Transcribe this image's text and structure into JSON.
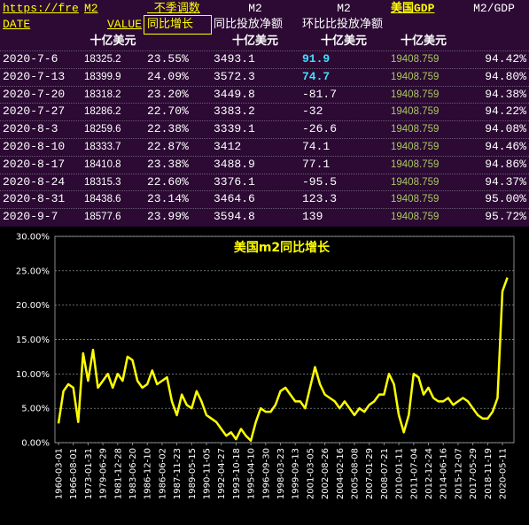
{
  "table": {
    "columns": [
      {
        "line1": "https://fre",
        "line2": "DATE"
      },
      {
        "line1": "M2",
        "line2": "VALUE",
        "unit": "十亿美元"
      },
      {
        "line1": "_不季调数",
        "line2": "同比增长"
      },
      {
        "line1": "M2",
        "line2": "同比投放净额",
        "unit": "十亿美元"
      },
      {
        "line1": "M2",
        "line2": "环比比投放净额",
        "unit": "十亿美元"
      },
      {
        "line1": "美国GDP",
        "unit": "十亿美元"
      },
      {
        "line1": "M2/GDP"
      }
    ],
    "rows": [
      [
        "2020-7-6",
        "18325.2",
        "23.55%",
        "3493.1",
        "91.9",
        "19408.759",
        "94.42%"
      ],
      [
        "2020-7-13",
        "18399.9",
        "24.09%",
        "3572.3",
        "74.7",
        "19408.759",
        "94.80%"
      ],
      [
        "2020-7-20",
        "18318.2",
        "23.20%",
        "3449.8",
        "-81.7",
        "19408.759",
        "94.38%"
      ],
      [
        "2020-7-27",
        "18286.2",
        "22.70%",
        "3383.2",
        "-32",
        "19408.759",
        "94.22%"
      ],
      [
        "2020-8-3",
        "18259.6",
        "22.38%",
        "3339.1",
        "-26.6",
        "19408.759",
        "94.08%"
      ],
      [
        "2020-8-10",
        "18333.7",
        "22.87%",
        "3412",
        "74.1",
        "19408.759",
        "94.46%"
      ],
      [
        "2020-8-17",
        "18410.8",
        "23.38%",
        "3488.9",
        "77.1",
        "19408.759",
        "94.86%"
      ],
      [
        "2020-8-24",
        "18315.3",
        "22.60%",
        "3376.1",
        "-95.5",
        "19408.759",
        "94.37%"
      ],
      [
        "2020-8-31",
        "18438.6",
        "23.14%",
        "3464.6",
        "123.3",
        "19408.759",
        "95.00%"
      ],
      [
        "2020-9-7",
        "18577.6",
        "23.99%",
        "3594.8",
        "139",
        "19408.759",
        "95.72%"
      ]
    ]
  },
  "chart_data": {
    "type": "line",
    "title": "美国m2同比增长",
    "color": "#ffff00",
    "grid": true,
    "ylim": [
      0,
      30
    ],
    "yticks": [
      {
        "value": 0,
        "label": "0.00%"
      },
      {
        "value": 5,
        "label": "5.00%"
      },
      {
        "value": 10,
        "label": "10.00%"
      },
      {
        "value": 15,
        "label": "15.00%"
      },
      {
        "value": 20,
        "label": "20.00%"
      },
      {
        "value": 25,
        "label": "25.00%"
      },
      {
        "value": 30,
        "label": "30.00%"
      }
    ],
    "categories": [
      "1960-03-01",
      null,
      null,
      "1966-08-01",
      null,
      null,
      "1973-01-31",
      null,
      null,
      "1979-06-29",
      null,
      null,
      "1981-12-28",
      null,
      null,
      "1983-06-20",
      null,
      null,
      "1986-12-10",
      null,
      null,
      "1986-06-02",
      null,
      null,
      "1987-11-23",
      null,
      null,
      "1989-05-15",
      null,
      null,
      "1990-11-05",
      null,
      null,
      "1992-04-27",
      null,
      null,
      "1993-10-18",
      null,
      null,
      "1995-04-10",
      null,
      null,
      "1996-09-30",
      null,
      null,
      "1998-03-23",
      null,
      null,
      "1999-09-13",
      null,
      null,
      "2001-03-05",
      null,
      null,
      "2002-08-26",
      null,
      null,
      "2004-02-16",
      null,
      null,
      "2005-08-08",
      null,
      null,
      "2007-01-29",
      null,
      null,
      "2008-07-21",
      null,
      null,
      "2010-01-11",
      null,
      null,
      "2011-07-04",
      null,
      null,
      "2012-12-24",
      null,
      null,
      "2014-06-16",
      null,
      null,
      "2015-12-07",
      null,
      null,
      "2017-05-29",
      null,
      null,
      "2018-11-19",
      null,
      null,
      "2020-05-11",
      null
    ],
    "values": [
      2.8,
      7.5,
      8.5,
      8,
      3,
      13,
      9,
      13.5,
      8,
      9,
      10,
      8,
      10,
      9,
      12.5,
      12,
      9,
      8,
      8.5,
      10.5,
      8.5,
      9,
      9.5,
      6,
      4,
      7,
      5.5,
      5,
      7.5,
      6,
      4,
      3.5,
      3,
      2,
      1,
      1.5,
      0.5,
      2,
      1,
      0.3,
      3,
      5,
      4.5,
      4.5,
      5.5,
      7.5,
      8,
      7,
      6,
      6,
      5,
      8,
      11,
      8.5,
      7,
      6.5,
      6,
      5,
      6,
      5,
      4,
      5,
      4.5,
      5.5,
      6,
      7,
      7,
      10,
      8.5,
      4,
      1.5,
      4,
      10,
      9.5,
      7,
      8,
      6.5,
      6,
      6,
      6.5,
      5.5,
      6,
      6.5,
      6,
      5,
      4,
      3.5,
      3.5,
      4.5,
      6.5,
      22,
      24
    ]
  }
}
